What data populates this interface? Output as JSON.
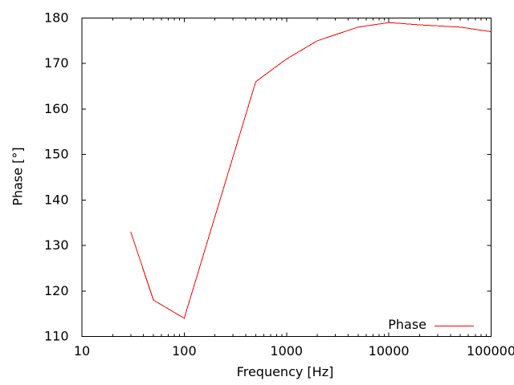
{
  "chart_data": {
    "type": "line",
    "title": "",
    "xlabel": "Frequency [Hz]",
    "ylabel": "Phase [°]",
    "x_scale": "log",
    "xlim": [
      10,
      100000
    ],
    "ylim": [
      110,
      180
    ],
    "x_ticks": [
      10,
      100,
      1000,
      10000,
      100000
    ],
    "x_tick_labels": [
      "10",
      "100",
      "1000",
      "10000",
      "100000"
    ],
    "y_ticks": [
      110,
      120,
      130,
      140,
      150,
      160,
      170,
      180
    ],
    "y_tick_labels": [
      "110",
      "120",
      "130",
      "140",
      "150",
      "160",
      "170",
      "180"
    ],
    "grid": false,
    "legend_position": "bottom-right",
    "series": [
      {
        "name": "Phase",
        "color": "#ff0000",
        "x": [
          30,
          50,
          100,
          500,
          1000,
          2000,
          5000,
          10000,
          20000,
          50000,
          100000
        ],
        "y": [
          133,
          118,
          114,
          166,
          171,
          175,
          178,
          179,
          178.5,
          178,
          177
        ]
      }
    ]
  },
  "styles": {
    "background": "#ffffff",
    "axis_color": "#000000",
    "text_color": "#000000"
  }
}
